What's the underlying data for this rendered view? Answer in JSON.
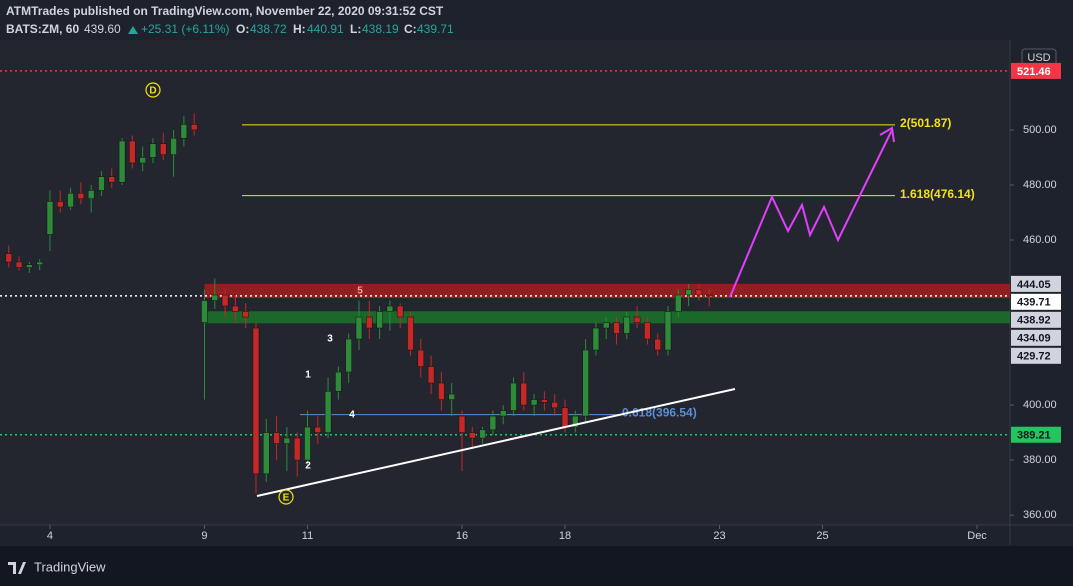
{
  "header": {
    "publisher": "ATMTrades published on TradingView.com, November 22, 2020 09:31:52 CST",
    "symbol": "BATS:ZM, 60",
    "last": "439.60",
    "change": "+25.31 (+6.11%)",
    "o_label": "O:",
    "o": "438.72",
    "h_label": "H:",
    "h": "440.91",
    "l_label": "L:",
    "l": "438.19",
    "c_label": "C:",
    "c": "439.71"
  },
  "footer": {
    "brand": "TradingView"
  },
  "chart_data": {
    "type": "candlestick",
    "currency": "USD",
    "up_color": "#2e8b3a",
    "down_color": "#c62828",
    "xlim": [
      -0.97,
      18.64
    ],
    "ylim": [
      356.4,
      532.7
    ],
    "xticks": [
      {
        "value": 0,
        "label": "4"
      },
      {
        "value": 3,
        "label": "9"
      },
      {
        "value": 5,
        "label": "11"
      },
      {
        "value": 8,
        "label": "16"
      },
      {
        "value": 10,
        "label": "18"
      },
      {
        "value": 13,
        "label": "23"
      },
      {
        "value": 15,
        "label": "25"
      },
      {
        "value": 18,
        "label": "Dec"
      }
    ],
    "yticks": [
      {
        "value": 360,
        "label": "360.00"
      },
      {
        "value": 380,
        "label": "380.00"
      },
      {
        "value": 400,
        "label": "400.00"
      },
      {
        "value": 460,
        "label": "460.00"
      },
      {
        "value": 480,
        "label": "480.00"
      },
      {
        "value": 500,
        "label": "500.00"
      }
    ],
    "candles": {
      "x": [
        -0.8,
        -0.6,
        -0.4,
        -0.2,
        0,
        0.2,
        0.4,
        0.6,
        0.8,
        1,
        1.2,
        1.4,
        1.6,
        1.8,
        2,
        2.2,
        2.4,
        2.6,
        2.8,
        3,
        3.2,
        3.4,
        3.6,
        3.8,
        4,
        4.2,
        4.4,
        4.6,
        4.8,
        5,
        5.2,
        5.4,
        5.6,
        5.8,
        6,
        6.2,
        6.4,
        6.6,
        6.8,
        7,
        7.2,
        7.4,
        7.6,
        7.8,
        8,
        8.2,
        8.4,
        8.6,
        8.8,
        9,
        9.2,
        9.4,
        9.6,
        9.8,
        10,
        10.2,
        10.4,
        10.6,
        10.8,
        11,
        11.2,
        11.4,
        11.6,
        11.8,
        12,
        12.2,
        12.4,
        12.6,
        12.8
      ],
      "open": [
        455,
        452,
        450,
        451,
        462,
        474,
        472,
        477,
        475,
        478,
        483,
        481,
        496,
        488,
        490,
        495,
        491,
        497,
        502,
        430,
        438,
        440,
        436,
        434,
        428,
        375,
        390,
        386,
        388,
        380,
        392,
        390,
        405,
        412,
        424,
        432,
        428,
        434,
        436,
        432,
        420,
        414,
        408,
        402,
        396,
        390,
        388,
        391,
        396,
        398,
        408,
        400,
        402,
        401,
        399,
        392,
        396,
        420,
        428,
        430,
        426,
        432,
        430,
        424,
        420,
        434,
        440,
        442,
        440
      ],
      "high": [
        458,
        454,
        452,
        453,
        478,
        478,
        479,
        481,
        480,
        485,
        486,
        497,
        498,
        494,
        497,
        499,
        500,
        505,
        506,
        442,
        446,
        442,
        440,
        437,
        430,
        395,
        396,
        392,
        390,
        398,
        396,
        410,
        414,
        426,
        438,
        438,
        436,
        438,
        437,
        434,
        424,
        418,
        412,
        408,
        398,
        392,
        392,
        398,
        400,
        410,
        412,
        404,
        405,
        404,
        402,
        398,
        424,
        430,
        432,
        432,
        434,
        436,
        432,
        426,
        436,
        442,
        444,
        444,
        442
      ],
      "low": [
        450,
        449,
        448,
        449,
        456,
        470,
        471,
        473,
        470,
        476,
        479,
        480,
        486,
        485,
        488,
        489,
        483,
        494,
        498,
        402,
        435,
        432,
        430,
        428,
        368,
        372,
        380,
        376,
        374,
        378,
        386,
        388,
        402,
        408,
        420,
        424,
        424,
        427,
        428,
        418,
        410,
        404,
        398,
        396,
        376,
        384,
        386,
        389,
        393,
        396,
        398,
        396,
        398,
        396,
        390,
        390,
        394,
        418,
        424,
        422,
        424,
        428,
        422,
        418,
        418,
        432,
        436,
        438,
        436
      ],
      "close": [
        452,
        450,
        451,
        452,
        474,
        472,
        477,
        475,
        478,
        483,
        481,
        496,
        488,
        490,
        495,
        491,
        497,
        502,
        500,
        438,
        440,
        436,
        434,
        432,
        375,
        390,
        386,
        388,
        380,
        392,
        390,
        405,
        412,
        424,
        432,
        428,
        434,
        436,
        432,
        420,
        414,
        408,
        402,
        404,
        390,
        388,
        391,
        396,
        398,
        408,
        400,
        402,
        401,
        399,
        392,
        396,
        420,
        428,
        430,
        426,
        432,
        430,
        424,
        420,
        434,
        440,
        442,
        440,
        439.71
      ]
    },
    "levels": [
      {
        "value": 521.46,
        "color": "#f23645",
        "style": "dotted"
      },
      {
        "value": 439.71,
        "color": "#ffffff",
        "style": "dotted"
      },
      {
        "value": 389.21,
        "color": "#22c55e",
        "style": "dotted"
      }
    ],
    "zones": [
      {
        "low": 438.92,
        "high": 444.05,
        "color": "#b71c1c"
      },
      {
        "low": 429.72,
        "high": 434.09,
        "color": "#1b7e2a"
      }
    ],
    "fib_levels": [
      {
        "value": 501.87,
        "label": "2(501.87)",
        "color": "#f5e211"
      },
      {
        "value": 476.14,
        "label": "1.618(476.14)",
        "color": "#f5e211"
      },
      {
        "value": 396.54,
        "label": "0.618(396.54)",
        "color": "#5b8fd6"
      }
    ],
    "waves": [
      "D",
      "E",
      "1",
      "2",
      "3",
      "4",
      "5"
    ]
  }
}
